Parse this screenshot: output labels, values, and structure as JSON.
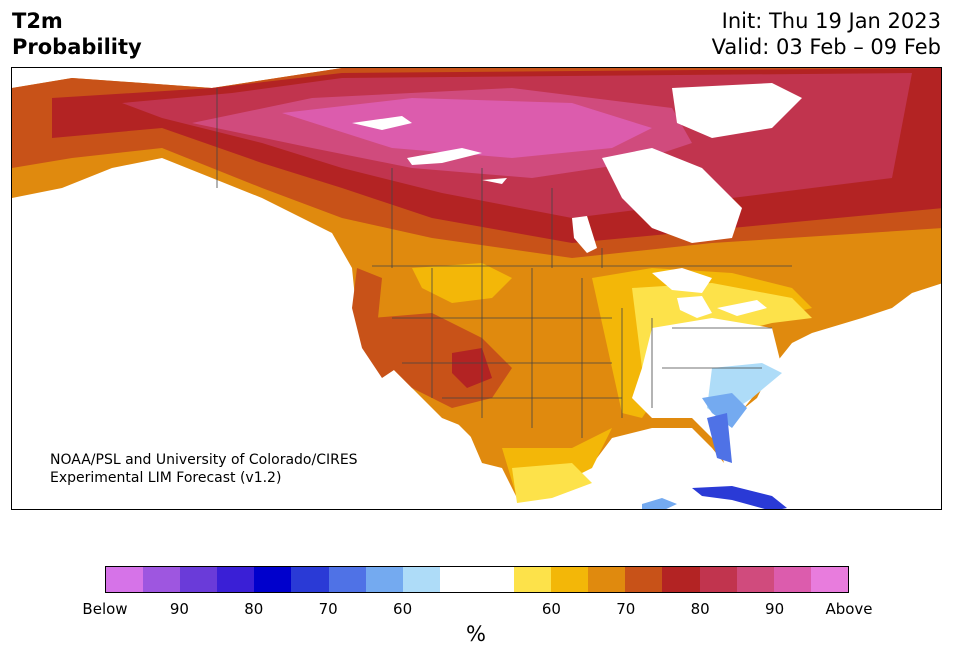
{
  "header": {
    "variable": "T2m",
    "product": "Probability",
    "init": "Init: Thu 19 Jan 2023",
    "valid": "Valid: 03 Feb – 09 Feb"
  },
  "credit": {
    "line1": "NOAA/PSL and University of Colorado/CIRES",
    "line2": "Experimental LIM Forecast (v1.2)"
  },
  "colorbar": {
    "colors": [
      "#d673e8",
      "#9e56e0",
      "#6a3bd9",
      "#3a1fd6",
      "#0000cc",
      "#2a3ad6",
      "#4f72e6",
      "#74aaf0",
      "#aedcf8",
      "#ffffff",
      "#ffffff",
      "#fde24a",
      "#f3b708",
      "#e08a0e",
      "#c85218",
      "#b32323",
      "#c1344e",
      "#d04b7d",
      "#dc5cad",
      "#e87cdd"
    ],
    "tick_labels": [
      "Below",
      "90",
      "80",
      "70",
      "60",
      "60",
      "70",
      "80",
      "90",
      "Above"
    ],
    "unit": "%"
  },
  "map": {
    "description_colors": {
      "below_light": "#aedcf8",
      "below_mid": "#74aaf0",
      "below_strong": "#4f72e6",
      "above_60": "#fde24a",
      "above_65": "#f3b708",
      "above_70": "#e08a0e",
      "above_75": "#c85218",
      "above_80": "#b32323",
      "above_85": "#c1344e",
      "above_90": "#d04b7d",
      "above_95": "#dc5cad"
    }
  }
}
